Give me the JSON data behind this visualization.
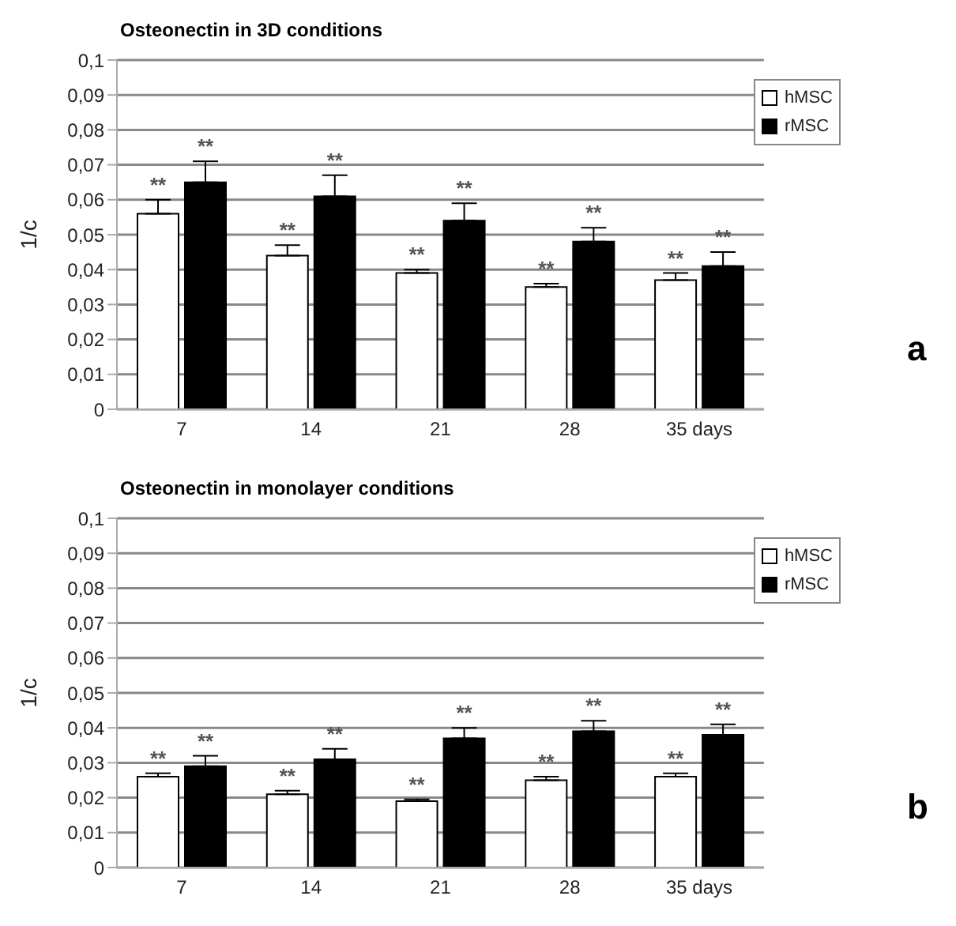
{
  "chart_data": [
    {
      "type": "bar",
      "title": "Osteonectin in 3D conditions",
      "ylabel": "1/c",
      "categories": [
        "7",
        "14",
        "21",
        "28",
        "35 days"
      ],
      "series": [
        {
          "name": "hMSC",
          "color": "#ffffff",
          "values": [
            0.056,
            0.044,
            0.039,
            0.035,
            0.037
          ],
          "value_labels": [
            "**",
            "**",
            "**",
            "**",
            "**"
          ],
          "errors": [
            [
              0.056,
              0.06
            ],
            [
              0.044,
              0.047
            ],
            [
              0.039,
              0.04
            ],
            [
              0.035,
              0.036
            ],
            [
              0.037,
              0.039
            ]
          ]
        },
        {
          "name": "rMSC",
          "color": "#000000",
          "values": [
            0.065,
            0.061,
            0.054,
            0.048,
            0.041
          ],
          "value_labels": [
            "**",
            "**",
            "**",
            "**",
            "**"
          ],
          "errors": [
            [
              0.065,
              0.071
            ],
            [
              0.061,
              0.067
            ],
            [
              0.054,
              0.059
            ],
            [
              0.048,
              0.052
            ],
            [
              0.041,
              0.045
            ]
          ]
        }
      ],
      "ylim": [
        0,
        0.1
      ],
      "yticks": [
        0,
        {
          "value": 0.01,
          "label": "0,01"
        },
        {
          "value": 0.02,
          "label": "0,02"
        },
        {
          "value": 0.03,
          "label": "0,03"
        },
        {
          "value": 0.04,
          "label": "0,04"
        },
        {
          "value": 0.05,
          "label": "0,05"
        },
        {
          "value": 0.06,
          "label": "0,06"
        },
        {
          "value": 0.07,
          "label": "0,07"
        },
        {
          "value": 0.08,
          "label": "0,08"
        },
        {
          "value": 0.09,
          "label": "0,09"
        },
        {
          "value": 0.1,
          "label": "0,1"
        }
      ],
      "grid": "y",
      "legend": "top right",
      "annotations": [
        "a"
      ]
    },
    {
      "type": "bar",
      "title": "Osteonectin in monolayer conditions",
      "ylabel": "1/c",
      "categories": [
        "7",
        "14",
        "21",
        "28",
        "35 days"
      ],
      "series": [
        {
          "name": "hMSC",
          "color": "#ffffff",
          "values": [
            0.026,
            0.021,
            0.019,
            0.025,
            0.026
          ],
          "value_labels": [
            "**",
            "**",
            "**",
            "**",
            "**"
          ],
          "errors": [
            [
              0.026,
              0.027
            ],
            [
              0.021,
              0.022
            ],
            [
              0.019,
              0.0195
            ],
            [
              0.025,
              0.026
            ],
            [
              0.026,
              0.027
            ]
          ]
        },
        {
          "name": "rMSC",
          "color": "#000000",
          "values": [
            0.029,
            0.031,
            0.037,
            0.039,
            0.038
          ],
          "value_labels": [
            "**",
            "**",
            "**",
            "**",
            "**"
          ],
          "errors": [
            [
              0.029,
              0.032
            ],
            [
              0.031,
              0.034
            ],
            [
              0.037,
              0.04
            ],
            [
              0.039,
              0.042
            ],
            [
              0.038,
              0.041
            ]
          ]
        }
      ],
      "ylim": [
        0,
        0.1
      ],
      "yticks": [
        0,
        {
          "value": 0.01,
          "label": "0,01"
        },
        {
          "value": 0.02,
          "label": "0,02"
        },
        {
          "value": 0.03,
          "label": "0,03"
        },
        {
          "value": 0.04,
          "label": "0,04"
        },
        {
          "value": 0.05,
          "label": "0,05"
        },
        {
          "value": 0.06,
          "label": "0,06"
        },
        {
          "value": 0.07,
          "label": "0,07"
        },
        {
          "value": 0.08,
          "label": "0,08"
        },
        {
          "value": 0.09,
          "label": "0,09"
        },
        {
          "value": 0.1,
          "label": "0,1"
        }
      ],
      "grid": "y",
      "legend": "top right",
      "annotations": [
        "b"
      ]
    }
  ]
}
